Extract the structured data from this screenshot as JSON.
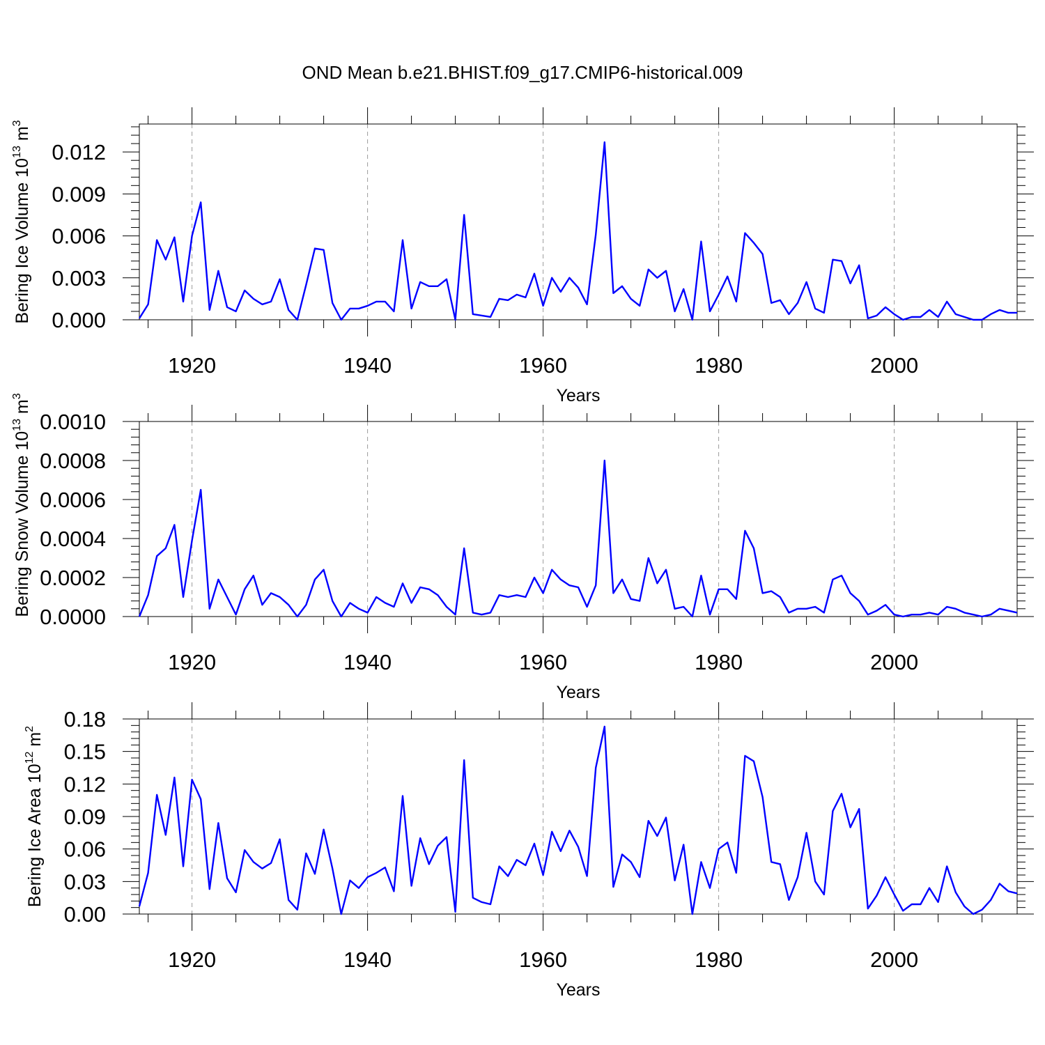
{
  "figure_title": "OND Mean b.e21.BHIST.f09_g17.CMIP6-historical.009",
  "colors": {
    "series": "#0000ff",
    "grid": "#9a9a9a",
    "axis": "#000000"
  },
  "chart_data": [
    {
      "type": "line",
      "title": "OND Mean b.e21.BHIST.f09_g17.CMIP6-historical.009",
      "xlabel": "Years",
      "ylabel": {
        "text": "Bering Ice Volume 10",
        "exp": "13",
        "unit": " m",
        "unit_exp": "3"
      },
      "xlim": [
        1914,
        2014
      ],
      "ylim": [
        0,
        0.014
      ],
      "xticks": [
        1920,
        1940,
        1960,
        1980,
        2000
      ],
      "xtick_labels": [
        "1920",
        "1940",
        "1960",
        "1980",
        "2000"
      ],
      "yticks": [
        0,
        0.003,
        0.006,
        0.009,
        0.012
      ],
      "ytick_labels": [
        "0.000",
        "0.003",
        "0.006",
        "0.009",
        "0.012"
      ],
      "grid": "x-dashed",
      "series": [
        {
          "name": "Bering Ice Volume",
          "x_start": 1914,
          "values": [
            0.0001,
            0.0011,
            0.0057,
            0.0043,
            0.0059,
            0.0013,
            0.006,
            0.0084,
            0.0007,
            0.0035,
            0.0009,
            0.0006,
            0.0021,
            0.0015,
            0.0011,
            0.0013,
            0.0029,
            0.0007,
            0.0,
            0.0025,
            0.0051,
            0.005,
            0.0012,
            0.0,
            0.0008,
            0.0008,
            0.001,
            0.0013,
            0.0013,
            0.0006,
            0.0057,
            0.0008,
            0.0027,
            0.0024,
            0.0024,
            0.0029,
            0.0,
            0.0075,
            0.0004,
            0.0003,
            0.0002,
            0.0015,
            0.0014,
            0.0018,
            0.0016,
            0.0033,
            0.001,
            0.003,
            0.002,
            0.003,
            0.0023,
            0.0011,
            0.0061,
            0.0127,
            0.0019,
            0.0024,
            0.0015,
            0.001,
            0.0036,
            0.003,
            0.0035,
            0.0006,
            0.0022,
            0.0,
            0.0056,
            0.0006,
            0.0018,
            0.0031,
            0.0013,
            0.0062,
            0.0055,
            0.0047,
            0.0012,
            0.0014,
            0.0004,
            0.0012,
            0.0027,
            0.0008,
            0.0005,
            0.0043,
            0.0042,
            0.0026,
            0.0039,
            0.0001,
            0.0003,
            0.0009,
            0.0004,
            0.0,
            0.0002,
            0.0002,
            0.0007,
            0.0002,
            0.0013,
            0.0004,
            0.0002,
            0.0,
            0.0,
            0.0004,
            0.0007,
            0.0005,
            0.0005
          ]
        }
      ]
    },
    {
      "type": "line",
      "xlabel": "Years",
      "ylabel": {
        "text": "Bering Snow Volume 10",
        "exp": "13",
        "unit": " m",
        "unit_exp": "3"
      },
      "xlim": [
        1914,
        2014
      ],
      "ylim": [
        0,
        0.001
      ],
      "xticks": [
        1920,
        1940,
        1960,
        1980,
        2000
      ],
      "xtick_labels": [
        "1920",
        "1940",
        "1960",
        "1980",
        "2000"
      ],
      "yticks": [
        0,
        0.0002,
        0.0004,
        0.0006,
        0.0008,
        0.001
      ],
      "ytick_labels": [
        "0.0000",
        "0.0002",
        "0.0004",
        "0.0006",
        "0.0008",
        "0.0010"
      ],
      "grid": "x-dashed",
      "series": [
        {
          "name": "Bering Snow Volume",
          "x_start": 1914,
          "values": [
            0.0,
            0.00011,
            0.00031,
            0.00035,
            0.00047,
            0.0001,
            0.00039,
            0.00065,
            4e-05,
            0.00019,
            0.0001,
            1e-05,
            0.00014,
            0.00021,
            6e-05,
            0.00012,
            0.0001,
            6e-05,
            0.0,
            6e-05,
            0.00019,
            0.00024,
            8e-05,
            0.0,
            7e-05,
            4e-05,
            2e-05,
            0.0001,
            7e-05,
            5e-05,
            0.00017,
            7e-05,
            0.00015,
            0.00014,
            0.00011,
            5e-05,
            1e-05,
            0.00035,
            2e-05,
            1e-05,
            2e-05,
            0.00011,
            0.0001,
            0.00011,
            0.0001,
            0.0002,
            0.00012,
            0.00024,
            0.00019,
            0.00016,
            0.00015,
            5e-05,
            0.00016,
            0.0008,
            0.00012,
            0.00019,
            9e-05,
            8e-05,
            0.0003,
            0.00017,
            0.00024,
            4e-05,
            5e-05,
            0.0,
            0.00021,
            1e-05,
            0.00014,
            0.00014,
            9e-05,
            0.00044,
            0.00035,
            0.00012,
            0.00013,
            0.0001,
            2e-05,
            4e-05,
            4e-05,
            5e-05,
            2e-05,
            0.00019,
            0.00021,
            0.00012,
            8e-05,
            1e-05,
            3e-05,
            6e-05,
            1e-05,
            0.0,
            1e-05,
            1e-05,
            2e-05,
            1e-05,
            5e-05,
            4e-05,
            2e-05,
            1e-05,
            0.0,
            1e-05,
            4e-05,
            3e-05,
            2e-05
          ]
        }
      ]
    },
    {
      "type": "line",
      "xlabel": "Years",
      "ylabel": {
        "text": "Bering Ice Area 10",
        "exp": "12",
        "unit": " m",
        "unit_exp": "2"
      },
      "xlim": [
        1914,
        2014
      ],
      "ylim": [
        0,
        0.18
      ],
      "xticks": [
        1920,
        1940,
        1960,
        1980,
        2000
      ],
      "xtick_labels": [
        "1920",
        "1940",
        "1960",
        "1980",
        "2000"
      ],
      "yticks": [
        0,
        0.03,
        0.06,
        0.09,
        0.12,
        0.15,
        0.18
      ],
      "ytick_labels": [
        "0.00",
        "0.03",
        "0.06",
        "0.09",
        "0.12",
        "0.15",
        "0.18"
      ],
      "grid": "x-dashed",
      "series": [
        {
          "name": "Bering Ice Area",
          "x_start": 1914,
          "values": [
            0.007,
            0.038,
            0.11,
            0.073,
            0.126,
            0.044,
            0.124,
            0.106,
            0.023,
            0.084,
            0.033,
            0.02,
            0.059,
            0.048,
            0.042,
            0.047,
            0.069,
            0.013,
            0.004,
            0.056,
            0.037,
            0.078,
            0.042,
            0.0,
            0.031,
            0.024,
            0.034,
            0.038,
            0.043,
            0.021,
            0.109,
            0.026,
            0.07,
            0.046,
            0.063,
            0.071,
            0.002,
            0.142,
            0.015,
            0.011,
            0.009,
            0.044,
            0.035,
            0.05,
            0.045,
            0.065,
            0.036,
            0.076,
            0.058,
            0.077,
            0.062,
            0.035,
            0.135,
            0.173,
            0.025,
            0.055,
            0.048,
            0.034,
            0.086,
            0.072,
            0.089,
            0.031,
            0.064,
            0.0,
            0.048,
            0.024,
            0.06,
            0.066,
            0.038,
            0.146,
            0.141,
            0.108,
            0.048,
            0.046,
            0.013,
            0.034,
            0.075,
            0.03,
            0.018,
            0.095,
            0.111,
            0.08,
            0.097,
            0.005,
            0.017,
            0.034,
            0.018,
            0.003,
            0.009,
            0.009,
            0.024,
            0.011,
            0.044,
            0.02,
            0.007,
            0.0,
            0.004,
            0.013,
            0.028,
            0.021,
            0.019
          ]
        }
      ]
    }
  ]
}
